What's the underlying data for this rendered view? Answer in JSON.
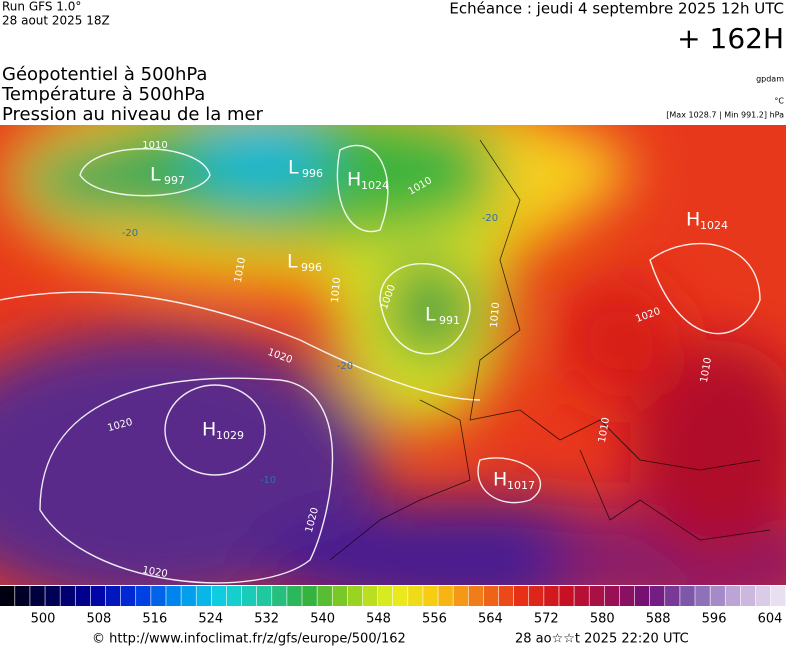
{
  "header": {
    "run": "Run GFS 1.0°",
    "date": "28 aout 2025 18Z",
    "echeance": "Echéance : jeudi 4 septembre 2025 12h UTC",
    "lead": "+ 162H",
    "titles": [
      "Géopotentiel à 500hPa",
      "Température à 500hPa",
      "Pression au niveau de la mer"
    ],
    "units": [
      "gpdam",
      "°C",
      "[Max 1028.7 | Min 991.2] hPa"
    ]
  },
  "centers": [
    {
      "letter": "L",
      "value": "997"
    },
    {
      "letter": "L",
      "value": "996"
    },
    {
      "letter": "H",
      "value": "1024"
    },
    {
      "letter": "L",
      "value": "996"
    },
    {
      "letter": "H",
      "value": "1024"
    },
    {
      "letter": "L",
      "value": "991"
    },
    {
      "letter": "H",
      "value": "1029"
    },
    {
      "letter": "H",
      "value": "1017"
    }
  ],
  "isobar_labels": [
    "1010",
    "1010",
    "1010",
    "1010",
    "1000",
    "1020",
    "1020",
    "1020",
    "1010",
    "1010",
    "1020",
    "1020",
    "1010"
  ],
  "temperature_labels": [
    "-20",
    "-20",
    "-20",
    "-10"
  ],
  "colorbar": {
    "labels": [
      "500",
      "508",
      "516",
      "524",
      "532",
      "540",
      "548",
      "556",
      "564",
      "572",
      "580",
      "588",
      "596",
      "604"
    ]
  },
  "footer": {
    "url": "© http://www.infoclimat.fr/z/gfs/europe/500/162",
    "stamp": "28 ao☆☆t 2025 22:20 UTC"
  }
}
